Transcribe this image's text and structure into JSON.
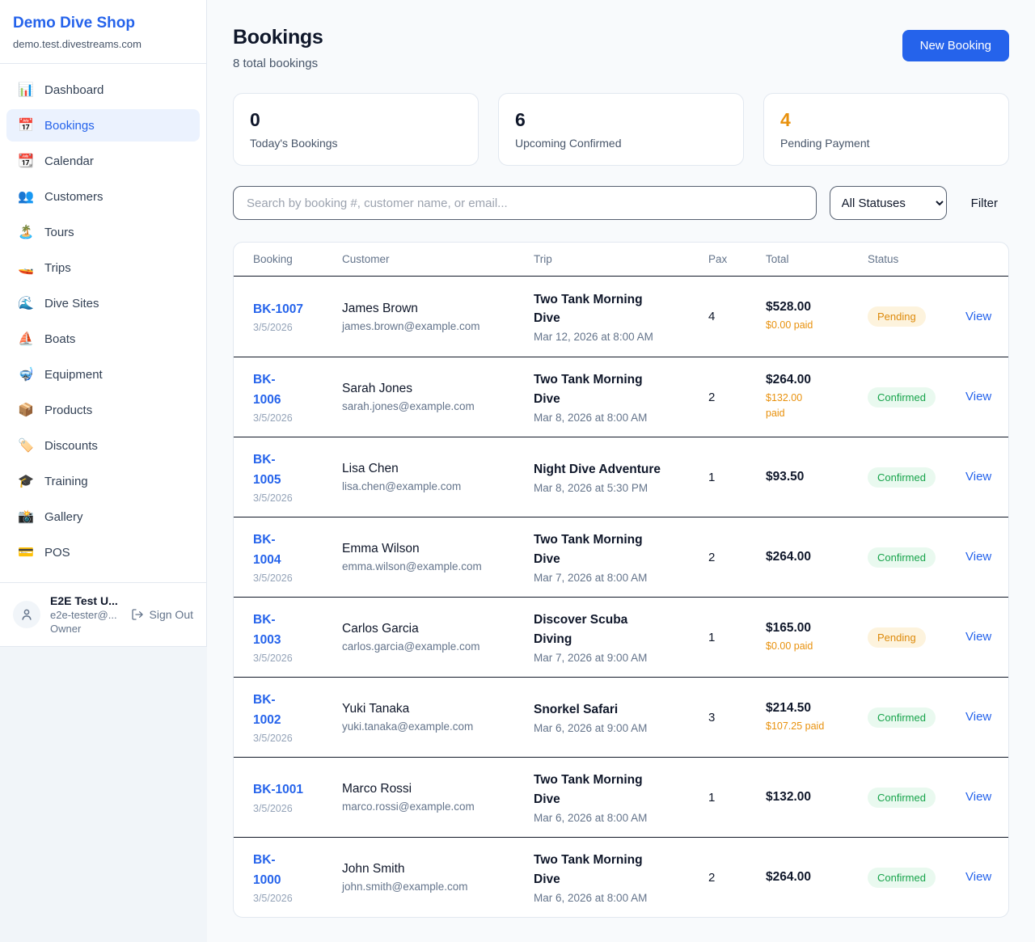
{
  "app": {
    "name": "Demo Dive Shop",
    "domain": "demo.test.divestreams.com"
  },
  "sidebar": {
    "items": [
      {
        "icon_name": "bar-chart-icon",
        "icon": "📊",
        "label": "Dashboard",
        "active": false
      },
      {
        "icon_name": "calendar-icon",
        "icon": "📅",
        "label": "Bookings",
        "active": true
      },
      {
        "icon_name": "tear-off-calendar-icon",
        "icon": "📆",
        "label": "Calendar",
        "active": false
      },
      {
        "icon_name": "people-icon",
        "icon": "👥",
        "label": "Customers",
        "active": false
      },
      {
        "icon_name": "island-icon",
        "icon": "🏝️",
        "label": "Tours",
        "active": false
      },
      {
        "icon_name": "speedboat-icon",
        "icon": "🚤",
        "label": "Trips",
        "active": false
      },
      {
        "icon_name": "wave-icon",
        "icon": "🌊",
        "label": "Dive Sites",
        "active": false
      },
      {
        "icon_name": "sailboat-icon",
        "icon": "⛵",
        "label": "Boats",
        "active": false
      },
      {
        "icon_name": "diving-mask-icon",
        "icon": "🤿",
        "label": "Equipment",
        "active": false
      },
      {
        "icon_name": "package-icon",
        "icon": "📦",
        "label": "Products",
        "active": false
      },
      {
        "icon_name": "label-tag-icon",
        "icon": "🏷️",
        "label": "Discounts",
        "active": false
      },
      {
        "icon_name": "graduation-cap-icon",
        "icon": "🎓",
        "label": "Training",
        "active": false
      },
      {
        "icon_name": "camera-icon",
        "icon": "📸",
        "label": "Gallery",
        "active": false
      },
      {
        "icon_name": "credit-card-icon",
        "icon": "💳",
        "label": "POS",
        "active": false
      }
    ],
    "user": {
      "name": "E2E Test U...",
      "email": "e2e-tester@...",
      "role": "Owner",
      "sign_out_label": "Sign Out"
    }
  },
  "header": {
    "title": "Bookings",
    "subtitle": "8 total bookings",
    "new_booking_label": "New Booking"
  },
  "stats": [
    {
      "value": "0",
      "label": "Today's Bookings",
      "accent": false
    },
    {
      "value": "6",
      "label": "Upcoming Confirmed",
      "accent": false
    },
    {
      "value": "4",
      "label": "Pending Payment",
      "accent": true
    }
  ],
  "filters": {
    "search_placeholder": "Search by booking #, customer name, or email...",
    "status_selected": "All Statuses",
    "filter_label": "Filter"
  },
  "table": {
    "columns": [
      "Booking",
      "Customer",
      "Trip",
      "Pax",
      "Total",
      "Status",
      ""
    ],
    "rows": [
      {
        "id": "BK-1007",
        "date": "3/5/2026",
        "customer": "James Brown",
        "email": "james.brown@example.com",
        "trip": "Two Tank Morning\nDive",
        "trip_datetime": "Mar 12, 2026 at 8:00 AM",
        "pax": "4",
        "total": "$528.00",
        "paid": "$0.00 paid",
        "status": "Pending",
        "action": "View"
      },
      {
        "id": "BK-\n1006",
        "date": "3/5/2026",
        "customer": "Sarah Jones",
        "email": "sarah.jones@example.com",
        "trip": "Two Tank Morning\nDive",
        "trip_datetime": "Mar 8, 2026 at 8:00 AM",
        "pax": "2",
        "total": "$264.00",
        "paid": "$132.00\npaid",
        "status": "Confirmed",
        "action": "View"
      },
      {
        "id": "BK-\n1005",
        "date": "3/5/2026",
        "customer": "Lisa Chen",
        "email": "lisa.chen@example.com",
        "trip": "Night Dive Adventure",
        "trip_datetime": "Mar 8, 2026 at 5:30 PM",
        "pax": "1",
        "total": "$93.50",
        "paid": "",
        "status": "Confirmed",
        "action": "View"
      },
      {
        "id": "BK-\n1004",
        "date": "3/5/2026",
        "customer": "Emma Wilson",
        "email": "emma.wilson@example.com",
        "trip": "Two Tank Morning\nDive",
        "trip_datetime": "Mar 7, 2026 at 8:00 AM",
        "pax": "2",
        "total": "$264.00",
        "paid": "",
        "status": "Confirmed",
        "action": "View"
      },
      {
        "id": "BK-\n1003",
        "date": "3/5/2026",
        "customer": "Carlos Garcia",
        "email": "carlos.garcia@example.com",
        "trip": "Discover Scuba\nDiving",
        "trip_datetime": "Mar 7, 2026 at 9:00 AM",
        "pax": "1",
        "total": "$165.00",
        "paid": "$0.00 paid",
        "status": "Pending",
        "action": "View"
      },
      {
        "id": "BK-\n1002",
        "date": "3/5/2026",
        "customer": "Yuki Tanaka",
        "email": "yuki.tanaka@example.com",
        "trip": "Snorkel Safari",
        "trip_datetime": "Mar 6, 2026 at 9:00 AM",
        "pax": "3",
        "total": "$214.50",
        "paid": "$107.25 paid",
        "status": "Confirmed",
        "action": "View"
      },
      {
        "id": "BK-1001",
        "date": "3/5/2026",
        "customer": "Marco Rossi",
        "email": "marco.rossi@example.com",
        "trip": "Two Tank Morning\nDive",
        "trip_datetime": "Mar 6, 2026 at 8:00 AM",
        "pax": "1",
        "total": "$132.00",
        "paid": "",
        "status": "Confirmed",
        "action": "View"
      },
      {
        "id": "BK-\n1000",
        "date": "3/5/2026",
        "customer": "John Smith",
        "email": "john.smith@example.com",
        "trip": "Two Tank Morning\nDive",
        "trip_datetime": "Mar 6, 2026 at 8:00 AM",
        "pax": "2",
        "total": "$264.00",
        "paid": "",
        "status": "Confirmed",
        "action": "View"
      }
    ]
  },
  "colors": {
    "brand_blue": "#2563EB",
    "active_nav_bg": "#EBF2FE",
    "pending_text": "#DD8A0B",
    "pending_bg": "#FDF3DD",
    "confirmed_text": "#16A34A",
    "confirmed_bg": "#E9F9EF",
    "paid_orange": "#E8910D",
    "page_bg": "#F8FAFC"
  }
}
